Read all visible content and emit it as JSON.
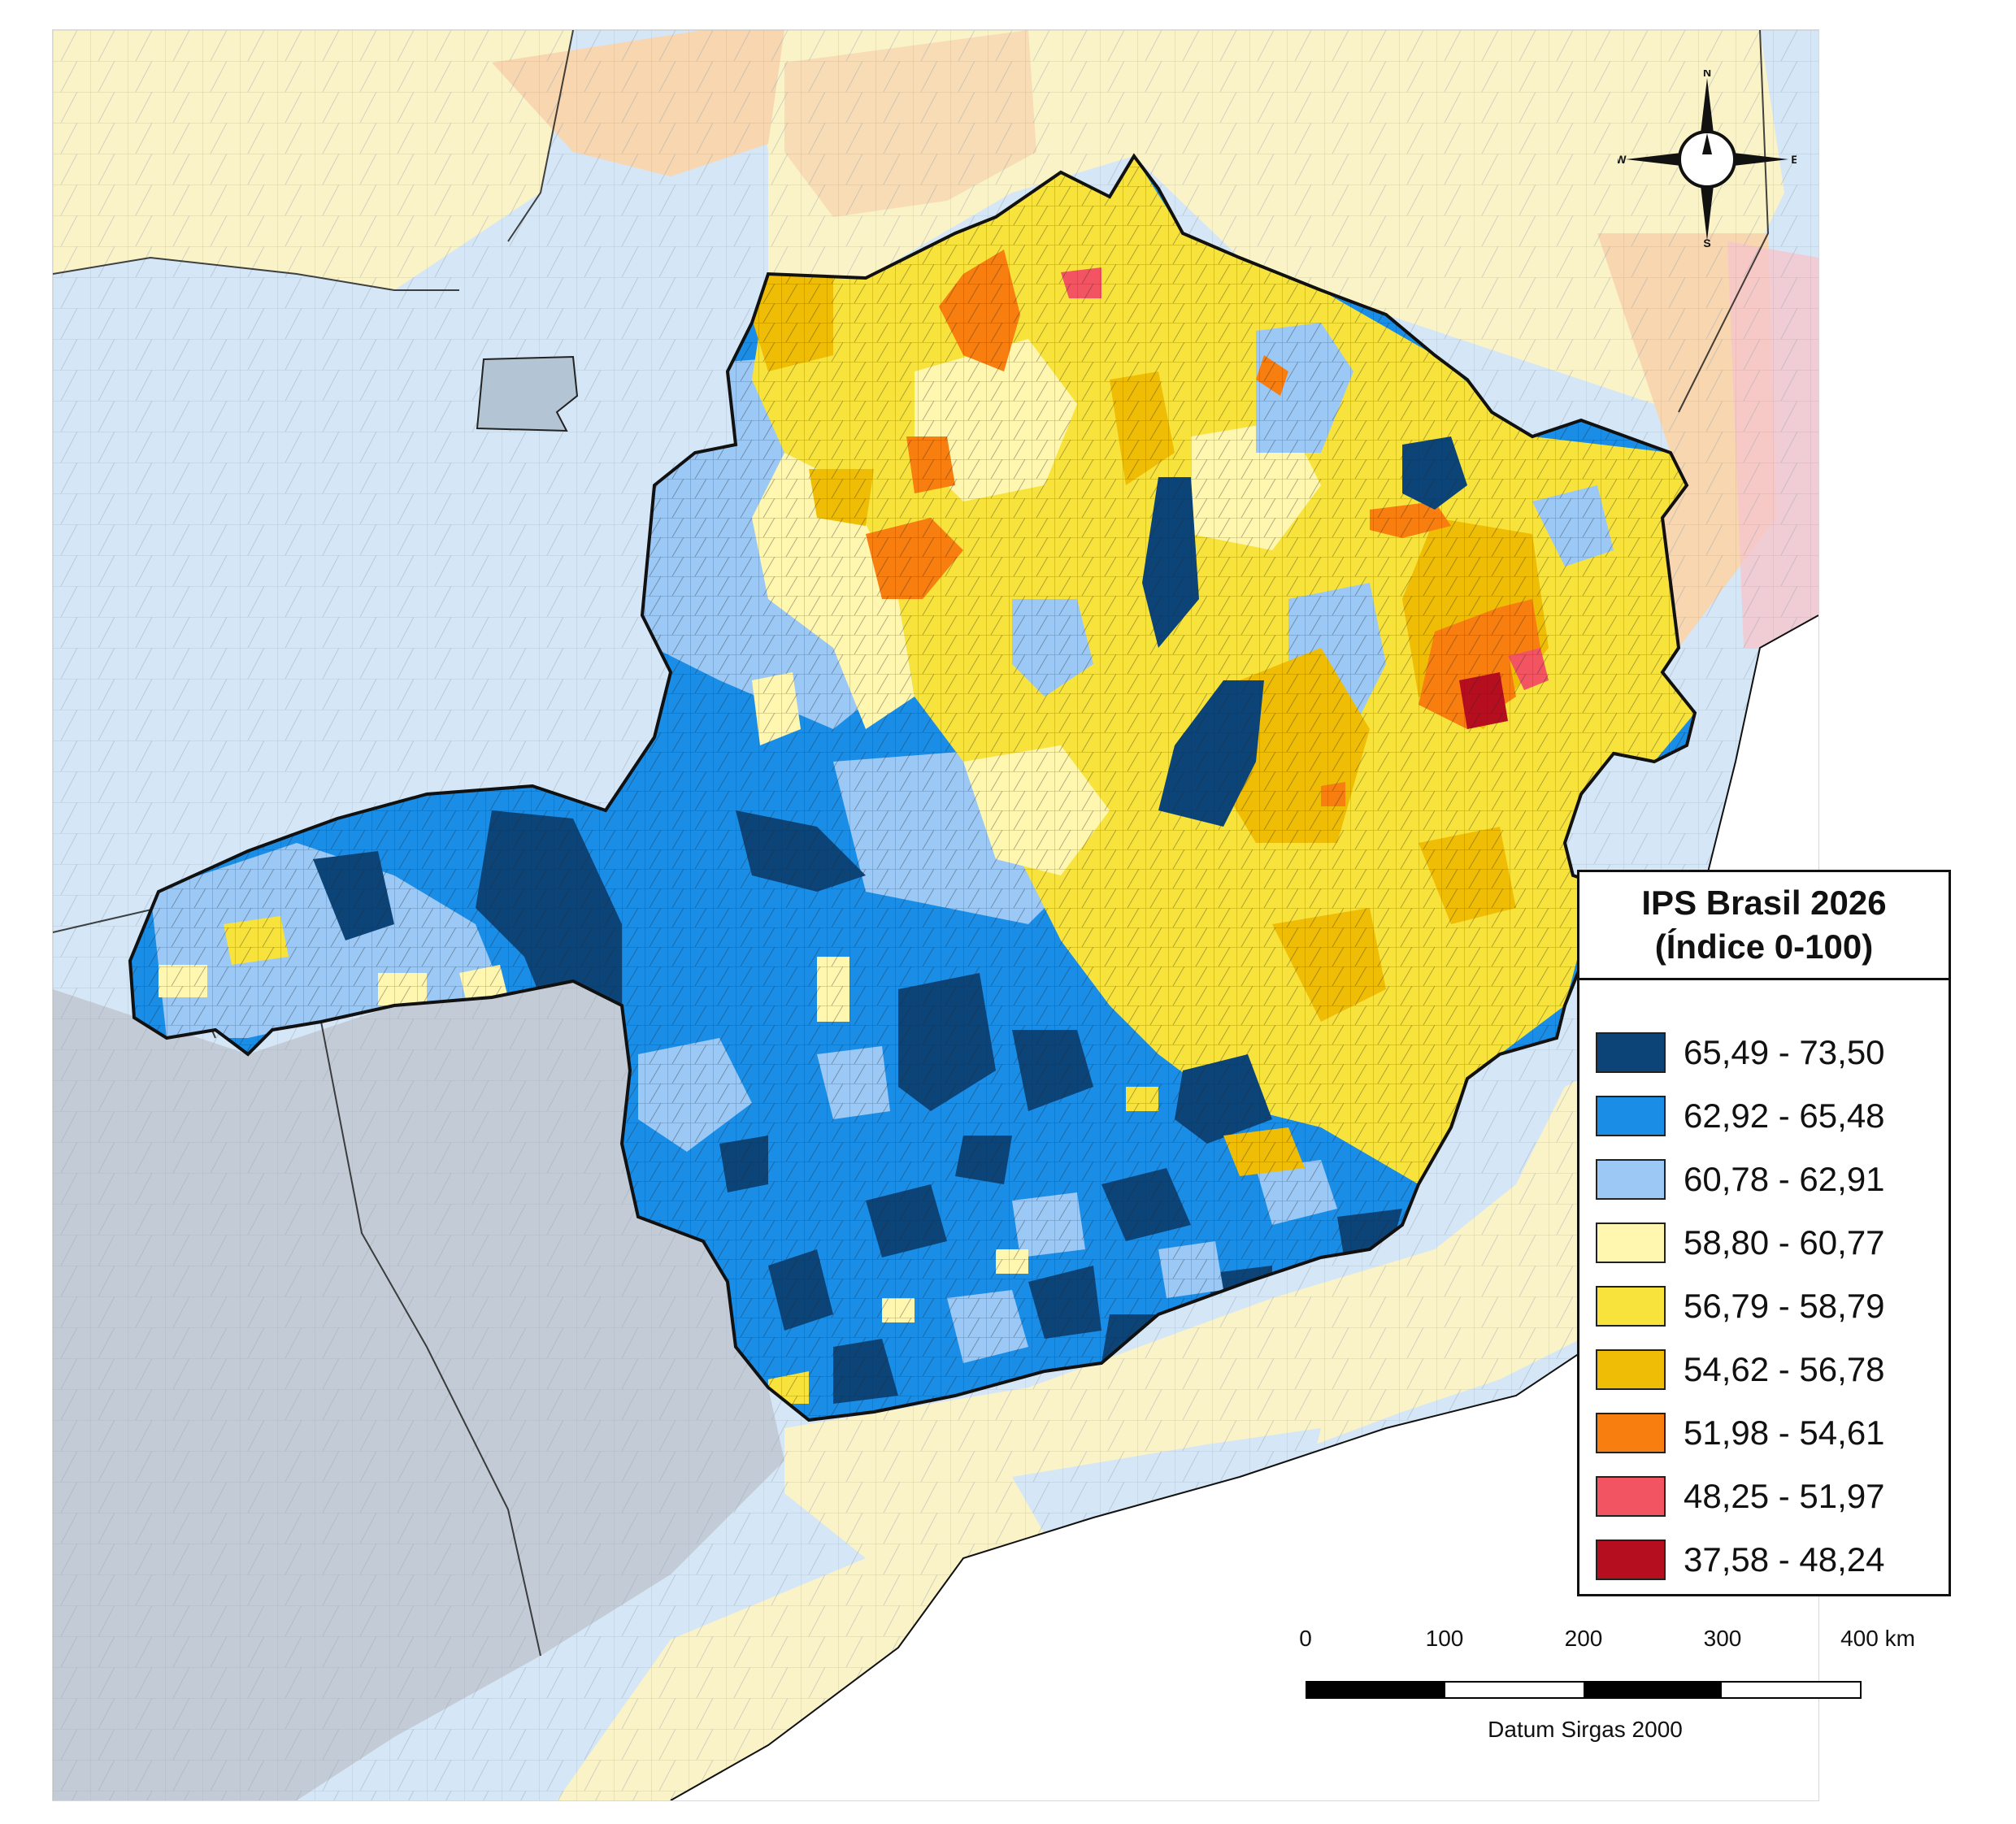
{
  "legend": {
    "title_line1": "IPS Brasil 2026",
    "title_line2": "(Índice 0-100)",
    "classes": [
      {
        "label": "65,49 - 73,50",
        "color": "#0d4478"
      },
      {
        "label": "62,92 - 65,48",
        "color": "#1a8de6"
      },
      {
        "label": "60,78 - 62,91",
        "color": "#9cc8f5"
      },
      {
        "label": "58,80 - 60,77",
        "color": "#fff6b0"
      },
      {
        "label": "56,79 - 58,79",
        "color": "#f8e33c"
      },
      {
        "label": "54,62 - 56,78",
        "color": "#efbd05"
      },
      {
        "label": "51,98 - 54,61",
        "color": "#f77e0f"
      },
      {
        "label": "48,25 - 51,97",
        "color": "#f25462"
      },
      {
        "label": "37,58 - 48,24",
        "color": "#b50f1f"
      }
    ]
  },
  "scale_bar": {
    "ticks": [
      "0",
      "100",
      "200",
      "300",
      "400 km"
    ],
    "datum": "Datum Sirgas 2000"
  },
  "compass": {
    "n": "N",
    "s": "S",
    "e": "E",
    "w": "W"
  },
  "colors": {
    "outside_light_blue": "#d5e6f6",
    "outside_yellow": "#fbf3c8",
    "outside_orange": "#f7d6b0",
    "outside_pink": "#f6c6cc",
    "outside_gray": "#c3ccd6",
    "ocean": "#ffffff",
    "border": "#111111"
  }
}
